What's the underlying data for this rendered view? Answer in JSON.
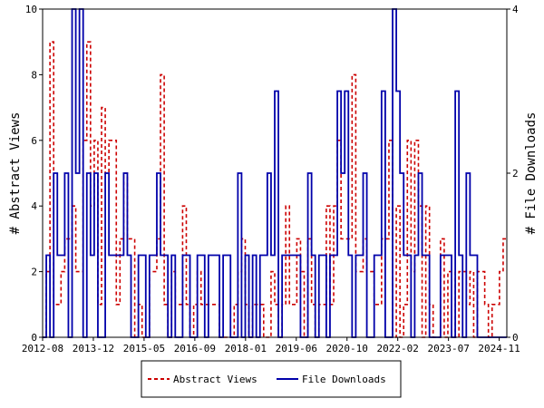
{
  "chart_data": {
    "type": "line",
    "ylabel_left": "# Abstract Views",
    "ylabel_right": "# File Downloads",
    "x_tick_labels": [
      "2012-08",
      "2013-12",
      "2015-05",
      "2016-09",
      "2018-01",
      "2019-06",
      "2020-10",
      "2022-02",
      "2023-07",
      "2024-11"
    ],
    "y_left_ticks": [
      "0",
      "2",
      "4",
      "6",
      "8",
      "10"
    ],
    "y_right_ticks": [
      "0",
      "2",
      "4"
    ],
    "ylim_left": [
      0,
      10
    ],
    "ylim_right": [
      0,
      4
    ],
    "legend_position": "bottom-center",
    "series": [
      {
        "name": "Abstract Views",
        "axis": "left",
        "color": "#cc0000",
        "style": "dashed",
        "values": [
          0,
          2,
          9,
          1,
          1,
          2,
          3,
          3,
          4,
          2,
          2,
          6,
          9,
          4,
          6,
          1,
          7,
          5,
          6,
          6,
          1,
          3,
          5,
          3,
          3,
          0,
          1,
          0,
          0,
          2,
          2,
          3,
          8,
          1,
          0,
          2,
          1,
          1,
          4,
          1,
          0,
          1,
          2,
          1,
          1,
          1,
          1,
          1,
          0,
          0,
          0,
          0,
          1,
          2,
          3,
          1,
          0,
          1,
          1,
          1,
          0,
          0,
          2,
          1,
          0,
          1,
          4,
          1,
          1,
          3,
          2,
          0,
          3,
          1,
          0,
          1,
          1,
          4,
          1,
          4,
          6,
          3,
          3,
          3,
          8,
          2,
          2,
          3,
          2,
          2,
          1,
          1,
          3,
          3,
          6,
          0,
          4,
          0,
          1,
          6,
          2,
          6,
          4,
          0,
          4,
          1,
          0,
          0,
          3,
          0,
          2,
          2,
          0,
          2,
          2,
          1,
          2,
          0,
          2,
          2,
          1,
          0,
          1,
          1,
          2,
          3
        ]
      },
      {
        "name": "File Downloads",
        "axis": "right",
        "color": "#0000aa",
        "style": "solid",
        "values": [
          0,
          1,
          0,
          2,
          1,
          1,
          2,
          0,
          4,
          2,
          4,
          0,
          2,
          1,
          2,
          0,
          0,
          2,
          1,
          1,
          1,
          1,
          2,
          1,
          0,
          0,
          1,
          1,
          0,
          1,
          1,
          2,
          1,
          1,
          0,
          1,
          0,
          0,
          1,
          1,
          0,
          0,
          1,
          1,
          0,
          1,
          1,
          1,
          0,
          1,
          1,
          0,
          0,
          2,
          0,
          1,
          0,
          1,
          0,
          1,
          1,
          2,
          1,
          3,
          0,
          1,
          1,
          1,
          1,
          1,
          0,
          0,
          2,
          1,
          0,
          1,
          1,
          0,
          1,
          1,
          3,
          2,
          3,
          1,
          0,
          1,
          1,
          2,
          0,
          0,
          1,
          1,
          3,
          0,
          0,
          4,
          3,
          2,
          1,
          1,
          0,
          1,
          2,
          1,
          1,
          0,
          0,
          0,
          1,
          1,
          1,
          0,
          3,
          1,
          0,
          2,
          1,
          1,
          0,
          0,
          0,
          0,
          0,
          0,
          0,
          0
        ]
      }
    ]
  }
}
